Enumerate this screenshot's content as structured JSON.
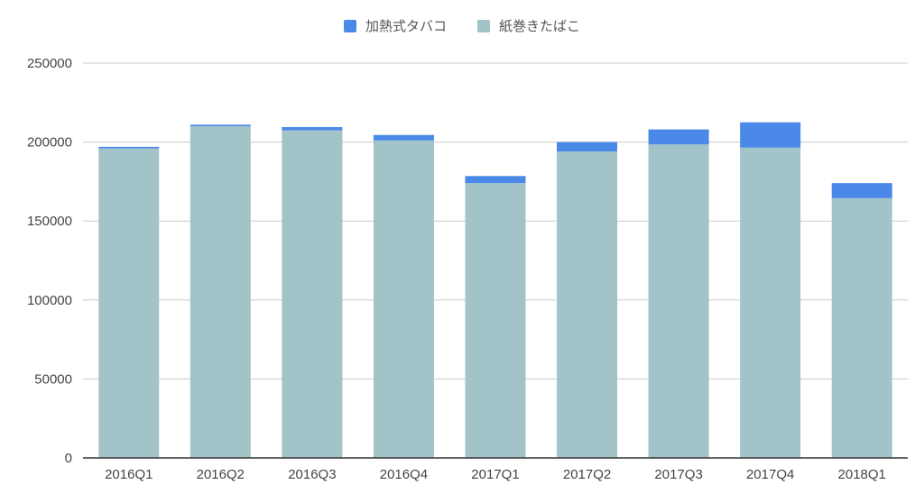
{
  "chart_data": {
    "type": "bar",
    "stacked": true,
    "categories": [
      "2016Q1",
      "2016Q2",
      "2016Q3",
      "2016Q4",
      "2017Q1",
      "2017Q2",
      "2017Q3",
      "2017Q4",
      "2018Q1"
    ],
    "series": [
      {
        "name": "紙巻きたばこ",
        "color": "#a2c4c9",
        "values": [
          196000,
          210000,
          207500,
          201000,
          174000,
          194000,
          198500,
          196500,
          164500
        ]
      },
      {
        "name": "加熱式タバコ",
        "color": "#4a89e8",
        "values": [
          1000,
          1000,
          2000,
          3500,
          4500,
          6000,
          9500,
          16000,
          9500
        ]
      }
    ],
    "ylim": [
      0,
      250000
    ],
    "yticks": [
      "0",
      "50000",
      "100000",
      "150000",
      "200000",
      "250000"
    ],
    "legend": "top",
    "grid": true
  }
}
